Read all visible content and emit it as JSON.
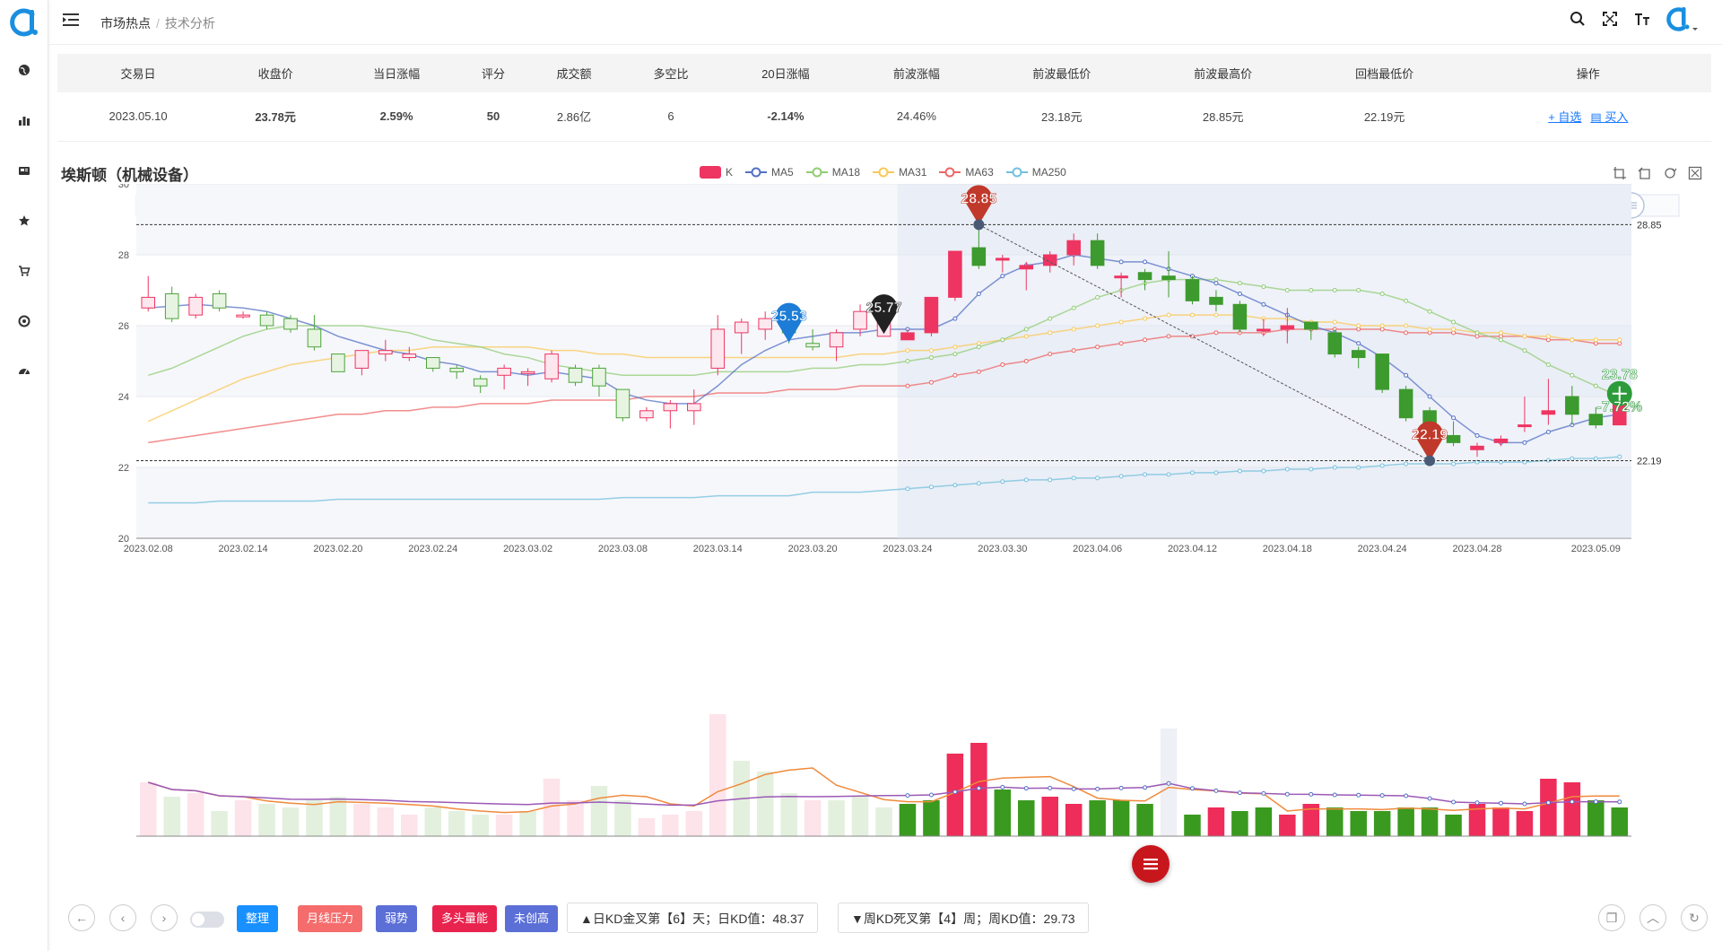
{
  "header": {
    "breadcrumb": [
      "市场热点",
      "技术分析"
    ]
  },
  "table": {
    "columns": [
      "交易日",
      "收盘价",
      "当日涨幅",
      "评分",
      "成交额",
      "多空比",
      "20日涨幅",
      "前波涨幅",
      "前波最低价",
      "前波最高价",
      "回档最低价",
      "操作"
    ],
    "row": {
      "date": "2023.05.10",
      "close": "23.78元",
      "change": "2.59%",
      "score": "50",
      "turnover": "2.86亿",
      "ratio": "6",
      "change20": "-2.14%",
      "wave_change": "24.46%",
      "wave_low": "23.18元",
      "wave_high": "28.85元",
      "pullback_low": "22.19元",
      "op_add": "+ 自选",
      "op_buy": "买入"
    }
  },
  "chart": {
    "title": "埃斯顿（机械设备）",
    "legend": [
      "K",
      "MA5",
      "MA18",
      "MA31",
      "MA63",
      "MA250"
    ],
    "legend_colors": [
      "#ee3562",
      "#5470c6",
      "#91cc75",
      "#fac858",
      "#ee6666",
      "#73c0de"
    ],
    "high_label": "28.85",
    "low_label": "22.19",
    "marker_blue": "25.53",
    "marker_black": "25.77",
    "marker_high": "28.85",
    "marker_low": "22.19",
    "last_price": "23.78",
    "last_pct": "-7.72%"
  },
  "chart_data": {
    "type": "candlestick",
    "ylim": [
      20,
      30
    ],
    "yticks": [
      "30",
      "28",
      "26",
      "24",
      "22",
      "20"
    ],
    "xticks": [
      "2023.02.08",
      "2023.02.14",
      "2023.02.20",
      "2023.02.24",
      "2023.03.02",
      "2023.03.08",
      "2023.03.14",
      "2023.03.20",
      "2023.03.24",
      "2023.03.30",
      "2023.04.06",
      "2023.04.12",
      "2023.04.18",
      "2023.04.24",
      "2023.04.28",
      "2023.05.09"
    ],
    "candles": [
      [
        26.5,
        26.8,
        26.4,
        27.4
      ],
      [
        26.9,
        26.2,
        26.1,
        27.1
      ],
      [
        26.3,
        26.8,
        26.2,
        26.9
      ],
      [
        26.9,
        26.5,
        26.4,
        27.0
      ],
      [
        26.3,
        26.3,
        26.2,
        26.4
      ],
      [
        26.3,
        26.0,
        25.9,
        26.4
      ],
      [
        26.2,
        25.9,
        25.8,
        26.3
      ],
      [
        25.9,
        25.4,
        25.3,
        26.3
      ],
      [
        25.2,
        24.7,
        24.7,
        25.2
      ],
      [
        24.8,
        25.3,
        24.6,
        25.3
      ],
      [
        25.2,
        25.3,
        25.0,
        25.6
      ],
      [
        25.1,
        25.2,
        25.0,
        25.4
      ],
      [
        25.1,
        24.8,
        24.7,
        25.1
      ],
      [
        24.8,
        24.7,
        24.5,
        24.9
      ],
      [
        24.5,
        24.3,
        24.1,
        24.6
      ],
      [
        24.6,
        24.8,
        24.2,
        24.9
      ],
      [
        24.7,
        24.7,
        24.3,
        24.8
      ],
      [
        24.5,
        25.2,
        24.4,
        25.3
      ],
      [
        24.8,
        24.4,
        24.3,
        24.9
      ],
      [
        24.8,
        24.3,
        24.0,
        24.9
      ],
      [
        24.2,
        23.4,
        23.3,
        24.2
      ],
      [
        23.4,
        23.6,
        23.3,
        23.7
      ],
      [
        23.6,
        23.8,
        23.1,
        23.9
      ],
      [
        23.6,
        23.8,
        23.2,
        24.2
      ],
      [
        24.8,
        25.9,
        24.6,
        26.3
      ],
      [
        25.8,
        26.1,
        25.2,
        26.2
      ],
      [
        25.9,
        26.2,
        25.6,
        26.4
      ],
      [
        26.2,
        25.8,
        25.5,
        26.4
      ],
      [
        25.5,
        25.4,
        25.3,
        25.9
      ],
      [
        25.4,
        25.8,
        25.0,
        25.9
      ],
      [
        25.9,
        26.4,
        25.7,
        26.6
      ],
      [
        25.7,
        26.5,
        25.7,
        26.5
      ],
      [
        25.6,
        25.8,
        25.6,
        25.9
      ],
      [
        25.8,
        26.8,
        25.7,
        26.8
      ],
      [
        26.8,
        28.1,
        26.7,
        28.1
      ],
      [
        28.2,
        27.7,
        27.6,
        28.85
      ],
      [
        27.9,
        27.9,
        27.5,
        28.0
      ],
      [
        27.6,
        27.7,
        27.0,
        27.8
      ],
      [
        27.7,
        28.0,
        27.5,
        28.1
      ],
      [
        28.0,
        28.4,
        27.7,
        28.6
      ],
      [
        28.4,
        27.7,
        27.6,
        28.6
      ],
      [
        27.4,
        27.4,
        26.8,
        27.5
      ],
      [
        27.5,
        27.3,
        27.0,
        27.6
      ],
      [
        27.4,
        27.3,
        26.8,
        28.1
      ],
      [
        27.3,
        26.7,
        26.6,
        27.4
      ],
      [
        26.8,
        26.6,
        26.4,
        27.0
      ],
      [
        26.6,
        25.9,
        25.8,
        26.7
      ],
      [
        25.9,
        25.9,
        25.7,
        26.2
      ],
      [
        25.9,
        26.0,
        25.5,
        26.5
      ],
      [
        26.1,
        25.9,
        25.6,
        26.1
      ],
      [
        25.8,
        25.2,
        25.1,
        25.9
      ],
      [
        25.3,
        25.1,
        24.8,
        25.4
      ],
      [
        25.2,
        24.2,
        24.1,
        25.2
      ],
      [
        24.2,
        23.4,
        23.3,
        24.3
      ],
      [
        23.6,
        22.7,
        22.19,
        23.7
      ],
      [
        22.9,
        22.7,
        22.6,
        23.3
      ],
      [
        22.5,
        22.6,
        22.3,
        22.7
      ],
      [
        22.7,
        22.8,
        22.6,
        22.9
      ],
      [
        23.2,
        23.2,
        23.0,
        24.0
      ],
      [
        23.5,
        23.6,
        23.2,
        24.5
      ],
      [
        24.0,
        23.5,
        23.2,
        24.3
      ],
      [
        23.5,
        23.2,
        23.1,
        23.7
      ],
      [
        23.2,
        23.78,
        23.2,
        23.9
      ]
    ],
    "ma5": [
      26.5,
      26.55,
      26.6,
      26.55,
      26.5,
      26.4,
      26.2,
      26.0,
      25.7,
      25.5,
      25.3,
      25.2,
      25.0,
      24.9,
      24.7,
      24.7,
      24.6,
      24.7,
      24.6,
      24.5,
      24.1,
      23.9,
      23.8,
      23.8,
      24.3,
      24.9,
      25.3,
      25.6,
      25.7,
      25.8,
      25.8,
      25.9,
      25.9,
      25.9,
      26.2,
      26.9,
      27.4,
      27.7,
      27.8,
      28.0,
      27.9,
      27.8,
      27.8,
      27.6,
      27.4,
      27.2,
      26.9,
      26.6,
      26.3,
      26.0,
      25.8,
      25.5,
      25.1,
      24.6,
      24.0,
      23.4,
      22.9,
      22.7,
      22.7,
      23.0,
      23.2,
      23.4,
      23.5
    ],
    "ma18": [
      24.6,
      24.8,
      25.1,
      25.4,
      25.7,
      25.9,
      26.0,
      26.0,
      26.0,
      26.0,
      25.9,
      25.8,
      25.6,
      25.5,
      25.4,
      25.2,
      25.1,
      24.9,
      24.8,
      24.7,
      24.6,
      24.6,
      24.6,
      24.6,
      24.7,
      24.7,
      24.7,
      24.7,
      24.8,
      24.8,
      24.9,
      24.9,
      25.0,
      25.1,
      25.2,
      25.4,
      25.6,
      25.9,
      26.2,
      26.5,
      26.8,
      27.0,
      27.2,
      27.3,
      27.3,
      27.3,
      27.2,
      27.1,
      27.0,
      27.0,
      27.0,
      27.0,
      26.9,
      26.7,
      26.4,
      26.1,
      25.8,
      25.6,
      25.3,
      24.9,
      24.6,
      24.3,
      24.0
    ],
    "ma31": [
      23.3,
      23.6,
      23.9,
      24.2,
      24.5,
      24.7,
      24.9,
      25.0,
      25.1,
      25.2,
      25.3,
      25.3,
      25.4,
      25.4,
      25.4,
      25.4,
      25.4,
      25.3,
      25.3,
      25.2,
      25.2,
      25.1,
      25.1,
      25.1,
      25.1,
      25.1,
      25.1,
      25.1,
      25.1,
      25.1,
      25.2,
      25.2,
      25.3,
      25.3,
      25.4,
      25.5,
      25.6,
      25.7,
      25.8,
      25.9,
      26.0,
      26.1,
      26.2,
      26.3,
      26.3,
      26.3,
      26.3,
      26.2,
      26.2,
      26.1,
      26.1,
      26.0,
      26.0,
      26.0,
      25.9,
      25.9,
      25.8,
      25.8,
      25.7,
      25.7,
      25.6,
      25.6,
      25.6
    ],
    "ma63": [
      22.7,
      22.8,
      22.9,
      23.0,
      23.1,
      23.2,
      23.3,
      23.4,
      23.5,
      23.5,
      23.6,
      23.6,
      23.7,
      23.7,
      23.8,
      23.8,
      23.8,
      23.9,
      23.9,
      23.9,
      23.9,
      24.0,
      24.0,
      24.0,
      24.1,
      24.1,
      24.1,
      24.2,
      24.2,
      24.2,
      24.3,
      24.3,
      24.3,
      24.4,
      24.6,
      24.7,
      24.9,
      25.0,
      25.2,
      25.3,
      25.4,
      25.5,
      25.6,
      25.7,
      25.7,
      25.8,
      25.8,
      25.8,
      25.9,
      25.9,
      25.9,
      25.9,
      25.9,
      25.8,
      25.8,
      25.8,
      25.7,
      25.7,
      25.7,
      25.6,
      25.6,
      25.5,
      25.5
    ],
    "ma250": [
      21.0,
      21.0,
      21.0,
      21.05,
      21.05,
      21.05,
      21.05,
      21.05,
      21.1,
      21.1,
      21.1,
      21.1,
      21.1,
      21.1,
      21.1,
      21.1,
      21.1,
      21.1,
      21.1,
      21.1,
      21.15,
      21.15,
      21.15,
      21.15,
      21.2,
      21.2,
      21.2,
      21.2,
      21.3,
      21.3,
      21.3,
      21.35,
      21.4,
      21.45,
      21.5,
      21.55,
      21.6,
      21.65,
      21.65,
      21.7,
      21.7,
      21.75,
      21.8,
      21.8,
      21.85,
      21.85,
      21.9,
      21.9,
      21.95,
      21.95,
      22.0,
      22.0,
      22.05,
      22.1,
      22.1,
      22.1,
      22.15,
      22.15,
      22.15,
      22.2,
      22.25,
      22.25,
      22.3
    ],
    "volume": [
      1.5,
      1.1,
      1.2,
      0.7,
      1.0,
      0.9,
      0.8,
      1.0,
      1.1,
      0.9,
      0.8,
      0.6,
      0.8,
      0.7,
      0.6,
      0.6,
      0.7,
      1.6,
      1.0,
      1.4,
      1.0,
      0.5,
      0.6,
      0.7,
      3.4,
      2.1,
      1.8,
      1.2,
      1.0,
      1.0,
      1.1,
      0.8,
      0.9,
      1.0,
      2.3,
      2.6,
      1.3,
      1.0,
      1.1,
      0.9,
      1.0,
      1.0,
      0.9,
      3.0,
      0.6,
      0.8,
      0.7,
      0.8,
      0.6,
      0.9,
      0.8,
      0.7,
      0.7,
      0.8,
      0.8,
      0.6,
      0.9,
      0.8,
      0.7,
      1.6,
      1.5,
      1.0,
      0.8
    ],
    "volume_up": [
      1,
      0,
      1,
      0,
      1,
      0,
      0,
      0,
      0,
      1,
      1,
      1,
      0,
      0,
      0,
      1,
      0,
      1,
      1,
      0,
      0,
      1,
      1,
      1,
      1,
      0,
      0,
      0,
      1,
      0,
      0,
      0,
      0,
      0,
      1,
      1,
      0,
      0,
      1,
      1,
      0,
      0,
      0,
      1,
      0,
      1,
      0,
      0,
      1,
      1,
      0,
      0,
      0,
      0,
      0,
      0,
      1,
      1,
      1,
      1,
      1,
      0,
      0
    ]
  },
  "bottom": {
    "tags": [
      "整理",
      "月线压力",
      "弱势",
      "多头量能",
      "未创高"
    ],
    "tag_colors": [
      "#1890ff",
      "#f56c6c",
      "#5b6fd6",
      "#e8244e",
      "#5b6fd6"
    ],
    "kd_day": "▲日KD金叉第【6】天；日KD值：48.37",
    "kd_week": "▼周KD死叉第【4】周；周KD值：29.73"
  }
}
